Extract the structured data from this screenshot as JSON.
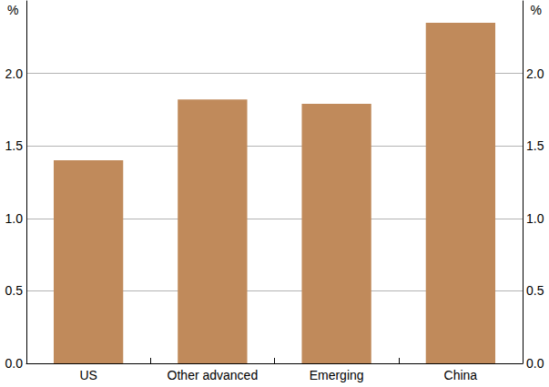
{
  "chart_data": {
    "type": "bar",
    "categories": [
      "US",
      "Other advanced",
      "Emerging",
      "China"
    ],
    "values": [
      1.4,
      1.82,
      1.79,
      2.35
    ],
    "color": "#c08a5b",
    "y_label": "%",
    "ylim": [
      0,
      2.5
    ],
    "yticks": [
      {
        "value": 0,
        "label": "0.0"
      },
      0.5,
      {
        "value": 1,
        "label": "1.0"
      },
      1.5,
      {
        "value": 2,
        "label": "2.0"
      }
    ],
    "grid": true
  }
}
